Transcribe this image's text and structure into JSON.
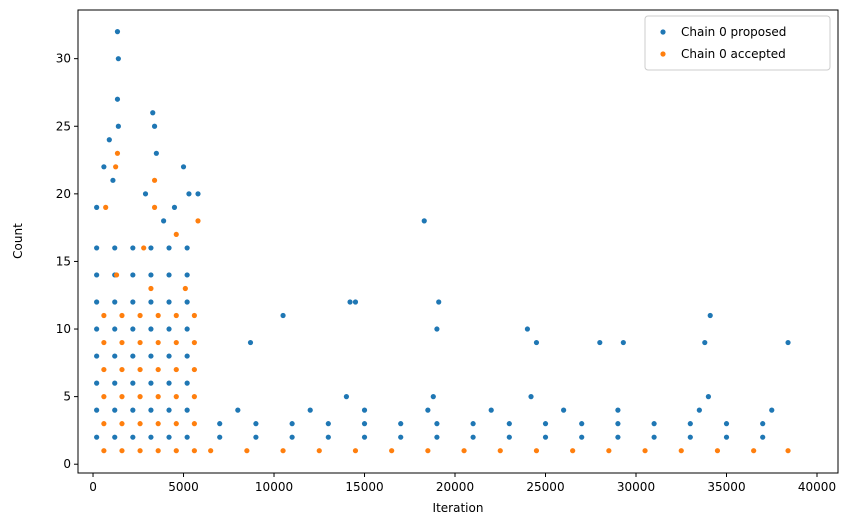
{
  "chart_data": {
    "type": "scatter",
    "xlabel": "Iteration",
    "ylabel": "Count",
    "xlim": [
      -830,
      41160
    ],
    "ylim": [
      -0.65,
      33.6
    ],
    "xticks": [
      0,
      5000,
      10000,
      15000,
      20000,
      25000,
      30000,
      35000,
      40000
    ],
    "yticks": [
      0,
      5,
      10,
      15,
      20,
      25,
      30
    ],
    "grid": false,
    "legend": "upper right",
    "series": [
      {
        "name": "Chain 0 proposed",
        "color": "#1f77b4",
        "x": [
          200,
          1200,
          2200,
          3200,
          4200,
          5200,
          200,
          1200,
          2200,
          3200,
          4200,
          5200,
          200,
          1200,
          2200,
          3200,
          4200,
          5200,
          200,
          1200,
          2200,
          3200,
          4200,
          5200,
          200,
          1200,
          2200,
          3200,
          4200,
          5200,
          200,
          1200,
          2200,
          3200,
          4200,
          5200,
          200,
          1200,
          2200,
          3200,
          4200,
          5200,
          200,
          1200,
          2200,
          3200,
          4200,
          5200,
          1350,
          1400,
          1350,
          1400,
          3300,
          3400,
          3500,
          5000,
          5300,
          5800,
          900,
          600,
          2900,
          4500,
          1100,
          200,
          3900,
          7000,
          9000,
          11000,
          13000,
          15000,
          17000,
          19000,
          21000,
          23000,
          25000,
          27000,
          29000,
          31000,
          33000,
          35000,
          37000,
          7000,
          9000,
          11000,
          13000,
          15000,
          17000,
          19000,
          21000,
          23000,
          25000,
          27000,
          29000,
          31000,
          33000,
          35000,
          37000,
          8000,
          12000,
          15000,
          18500,
          22000,
          26000,
          29000,
          33500,
          37500,
          14000,
          18800,
          24200,
          34000,
          18300,
          14200,
          14500,
          19100,
          10500,
          34100,
          24000,
          19000,
          8700,
          24500,
          28000,
          29300,
          33800,
          38400
        ],
        "y": [
          2,
          2,
          2,
          2,
          2,
          2,
          4,
          4,
          4,
          4,
          4,
          4,
          6,
          6,
          6,
          6,
          6,
          6,
          8,
          8,
          8,
          8,
          8,
          8,
          10,
          10,
          10,
          10,
          10,
          10,
          12,
          12,
          12,
          12,
          12,
          12,
          14,
          14,
          14,
          14,
          14,
          14,
          16,
          16,
          16,
          16,
          16,
          16,
          32,
          30,
          27,
          25,
          26,
          25,
          23,
          22,
          20,
          20,
          24,
          22,
          20,
          19,
          21,
          19,
          18,
          2,
          2,
          2,
          2,
          2,
          2,
          2,
          2,
          2,
          2,
          2,
          2,
          2,
          2,
          2,
          2,
          3,
          3,
          3,
          3,
          3,
          3,
          3,
          3,
          3,
          3,
          3,
          3,
          3,
          3,
          3,
          3,
          4,
          4,
          4,
          4,
          4,
          4,
          4,
          4,
          4,
          5,
          5,
          5,
          5,
          18,
          12,
          12,
          12,
          11,
          11,
          10,
          10,
          9,
          9,
          9,
          9,
          9,
          9
        ]
      },
      {
        "name": "Chain 0 accepted",
        "color": "#ff7f0e",
        "x": [
          600,
          1600,
          2600,
          3600,
          4600,
          5600,
          600,
          1600,
          2600,
          3600,
          4600,
          5600,
          600,
          1600,
          2600,
          3600,
          4600,
          5600,
          600,
          1600,
          2600,
          3600,
          4600,
          5600,
          600,
          1600,
          2600,
          3600,
          4600,
          5600,
          600,
          1600,
          2600,
          3600,
          4600,
          5600,
          1350,
          1250,
          3400,
          3400,
          5800,
          700,
          4600,
          2800,
          1300,
          3200,
          5100,
          6500,
          8500,
          10500,
          12500,
          14500,
          16500,
          18500,
          20500,
          22500,
          24500,
          26500,
          28500,
          30500,
          32500,
          34500,
          36500,
          38400
        ],
        "y": [
          1,
          1,
          1,
          1,
          1,
          1,
          3,
          3,
          3,
          3,
          3,
          3,
          5,
          5,
          5,
          5,
          5,
          5,
          7,
          7,
          7,
          7,
          7,
          7,
          9,
          9,
          9,
          9,
          9,
          9,
          11,
          11,
          11,
          11,
          11,
          11,
          23,
          22,
          21,
          19,
          18,
          19,
          17,
          16,
          14,
          13,
          13,
          1,
          1,
          1,
          1,
          1,
          1,
          1,
          1,
          1,
          1,
          1,
          1,
          1,
          1,
          1,
          1,
          1
        ]
      }
    ]
  }
}
